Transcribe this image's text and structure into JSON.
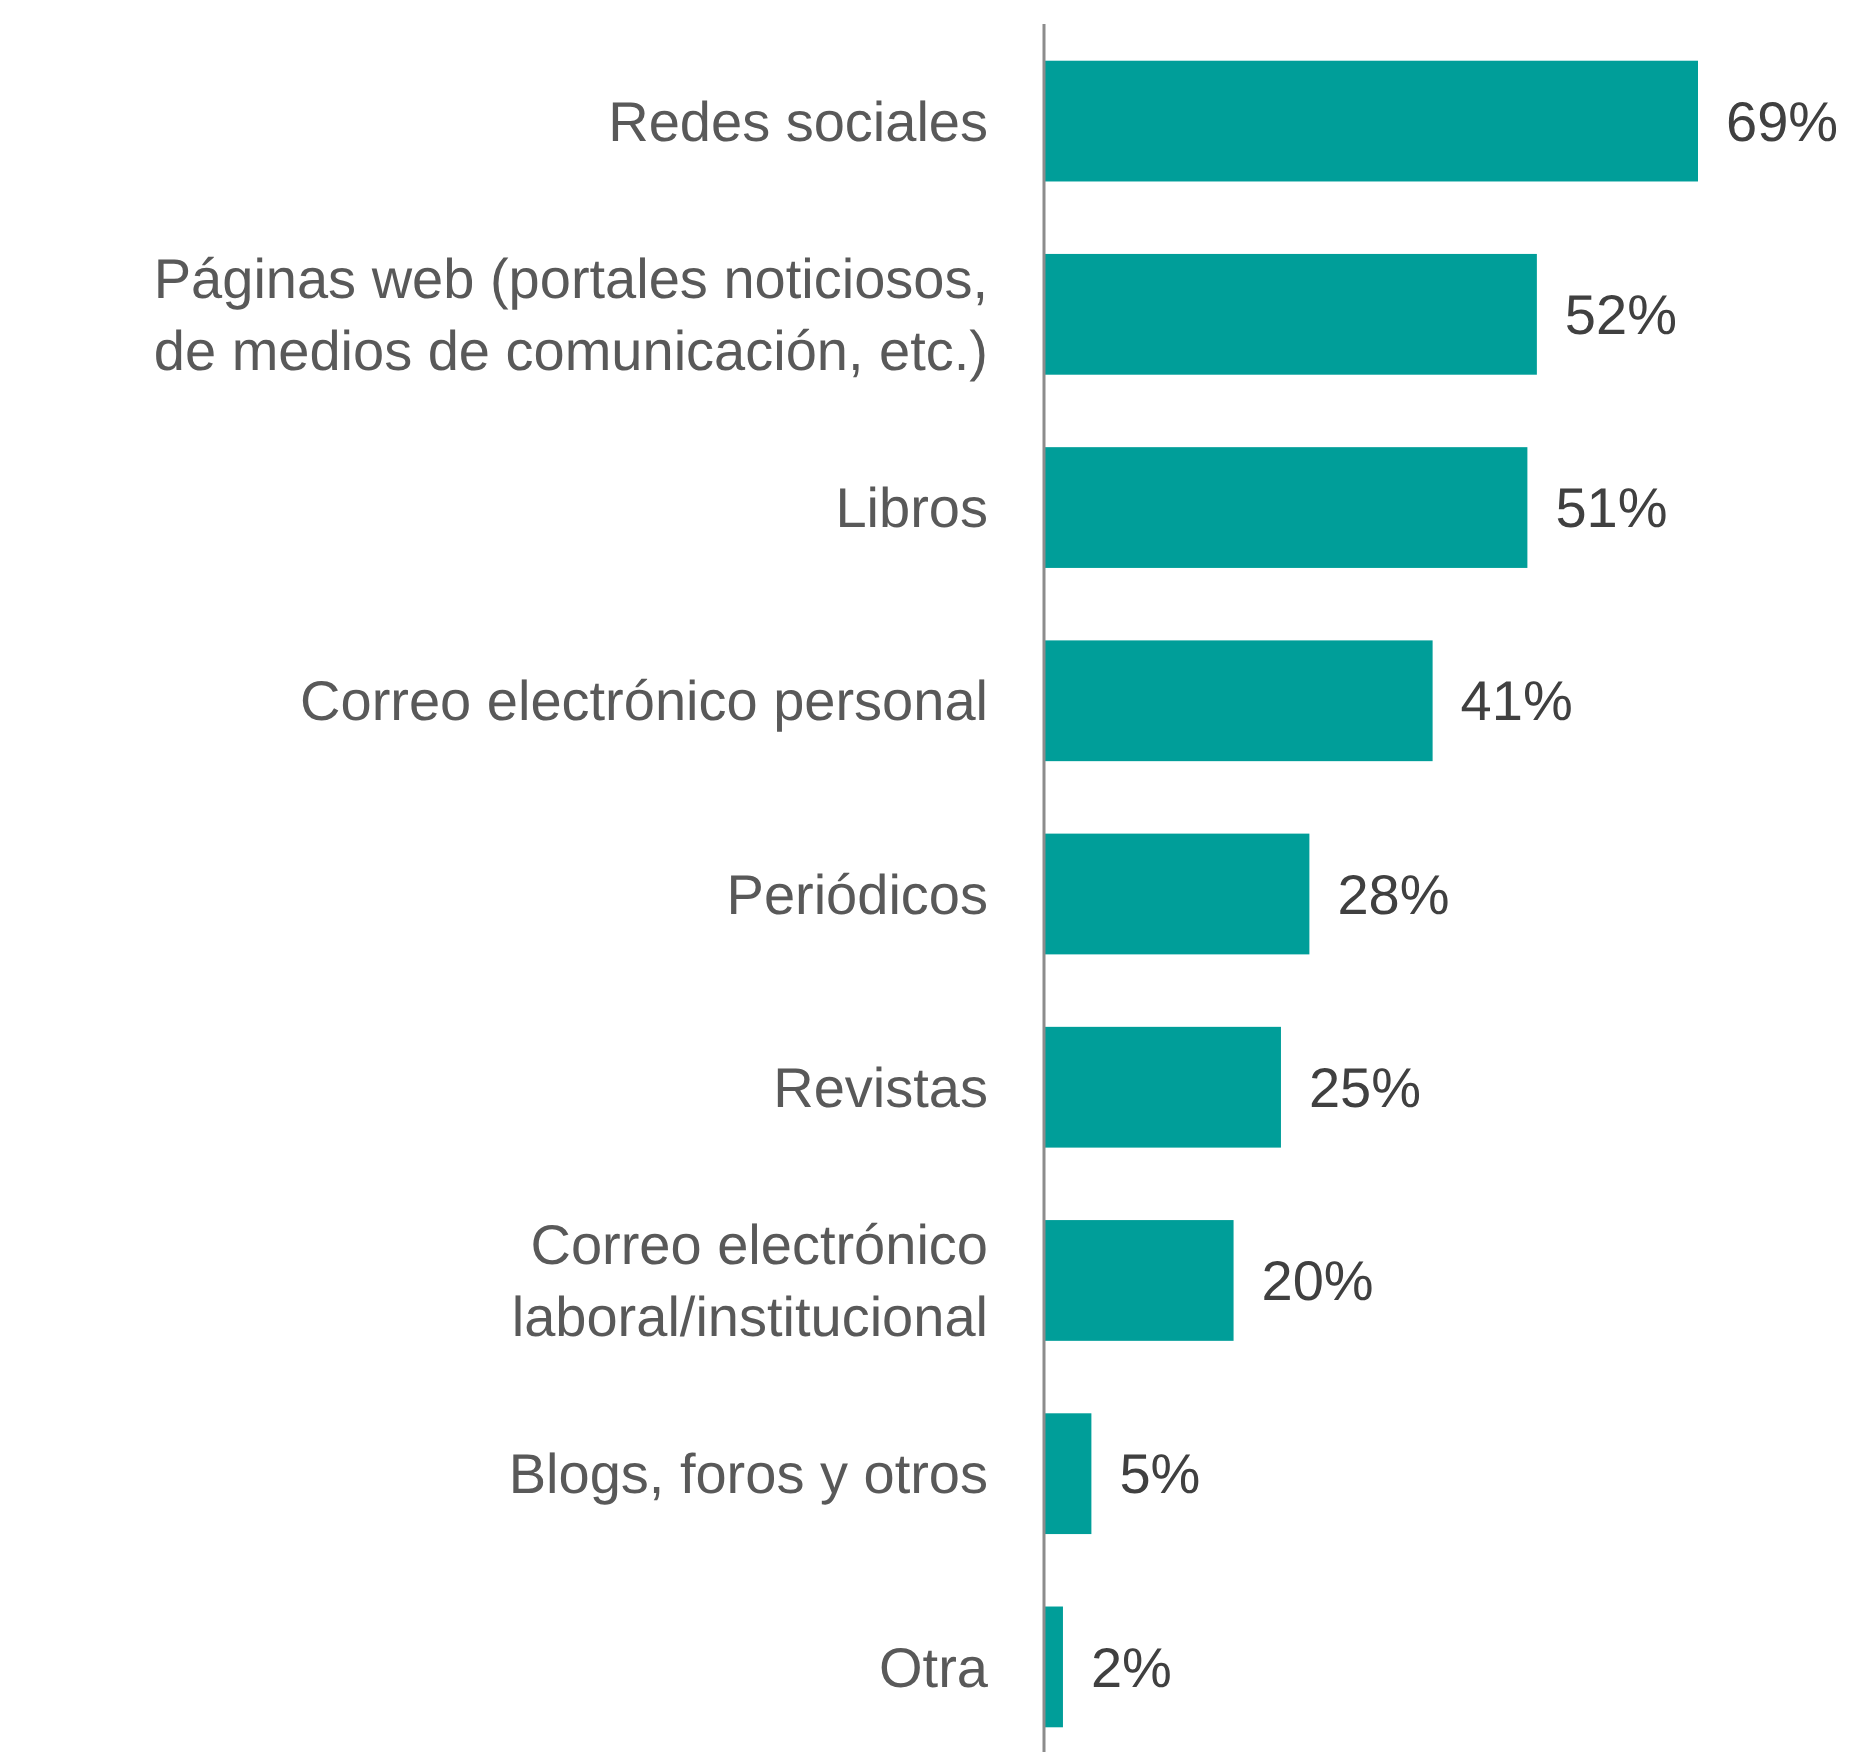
{
  "chart_data": {
    "type": "bar",
    "orientation": "horizontal",
    "categories": [
      "Redes sociales",
      "Páginas web (portales noticiosos, de medios de comunicación, etc.)",
      "Libros",
      "Correo electrónico personal",
      "Periódicos",
      "Revistas",
      "Correo electrónico laboral/institucional",
      "Blogs, foros y otros",
      "Otra"
    ],
    "values": [
      69,
      52,
      51,
      41,
      28,
      25,
      20,
      5,
      2
    ],
    "value_labels": [
      "69%",
      "52%",
      "51%",
      "41%",
      "28%",
      "25%",
      "20%",
      "5%",
      "2%"
    ],
    "color": "#009e99"
  }
}
